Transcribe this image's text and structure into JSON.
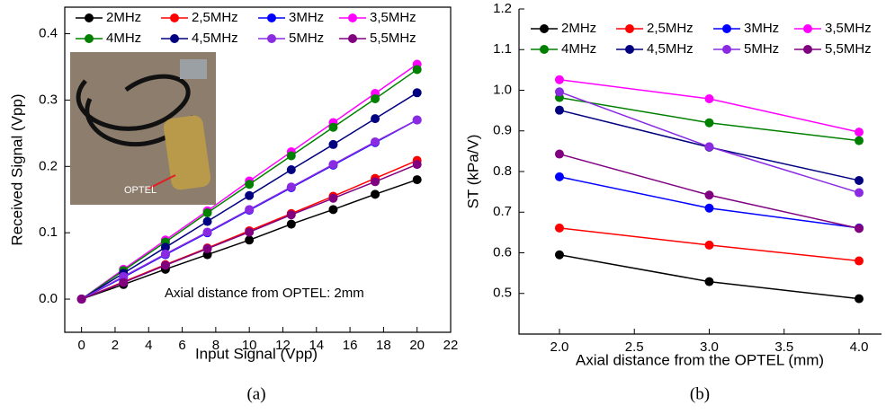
{
  "chart_data": [
    {
      "type": "line",
      "caption": "(a)",
      "xlabel": "Input Signal (Vpp)",
      "ylabel": "Received Signal (Vpp)",
      "annotation": "Axial distance from OPTEL: 2mm",
      "inset_label": "OPTEL",
      "x": [
        0,
        2.5,
        5,
        7.5,
        10,
        12.5,
        15,
        17.5,
        20
      ],
      "xlim": [
        -1,
        22
      ],
      "xticks": [
        0,
        2,
        4,
        6,
        8,
        10,
        12,
        14,
        16,
        18,
        20,
        22
      ],
      "ylim": [
        -0.05,
        0.44
      ],
      "yticks": [
        {
          "value": 0,
          "label": "0.0"
        },
        0.1,
        0.2,
        0.3,
        0.4
      ],
      "series": [
        {
          "name": "2MHz",
          "color": "#000000",
          "values": [
            0,
            0.022,
            0.045,
            0.067,
            0.089,
            0.113,
            0.135,
            0.158,
            0.18
          ]
        },
        {
          "name": "2,5MHz",
          "color": "#ff0000",
          "values": [
            0,
            0.026,
            0.052,
            0.077,
            0.103,
            0.129,
            0.155,
            0.182,
            0.209
          ]
        },
        {
          "name": "3MHz",
          "color": "#0000ff",
          "values": [
            0,
            0.033,
            0.067,
            0.1,
            0.134,
            0.168,
            0.202,
            0.236,
            0.27
          ]
        },
        {
          "name": "3,5MHz",
          "color": "#ff00ff",
          "values": [
            0,
            0.045,
            0.089,
            0.133,
            0.178,
            0.222,
            0.266,
            0.31,
            0.354
          ]
        },
        {
          "name": "4MHz",
          "color": "#008000",
          "values": [
            0,
            0.043,
            0.086,
            0.13,
            0.173,
            0.216,
            0.259,
            0.302,
            0.346
          ]
        },
        {
          "name": "4,5MHz",
          "color": "#000080",
          "values": [
            0,
            0.039,
            0.078,
            0.117,
            0.156,
            0.195,
            0.233,
            0.272,
            0.311
          ]
        },
        {
          "name": "5MHz",
          "color": "#8a2be2",
          "values": [
            0,
            0.034,
            0.068,
            0.101,
            0.135,
            0.169,
            0.203,
            0.237,
            0.27
          ]
        },
        {
          "name": "5,5MHz",
          "color": "#800080",
          "values": [
            0,
            0.025,
            0.051,
            0.076,
            0.101,
            0.127,
            0.152,
            0.177,
            0.203
          ]
        }
      ]
    },
    {
      "type": "line",
      "caption": "(b)",
      "xlabel": "Axial distance from the OPTEL (mm)",
      "ylabel": "ST (kPa/V)",
      "x": [
        2,
        3,
        4
      ],
      "xlim": [
        1.73,
        4.15
      ],
      "xticks": [
        {
          "value": 2,
          "label": "2.0"
        },
        2.5,
        {
          "value": 3,
          "label": "3.0"
        },
        3.5,
        {
          "value": 4,
          "label": "4.0"
        }
      ],
      "ylim": [
        0.4,
        1.2
      ],
      "yticks": [
        0.5,
        0.6,
        0.7,
        0.8,
        0.9,
        {
          "value": 1,
          "label": "1.0"
        },
        1.1,
        1.2
      ],
      "series": [
        {
          "name": "2MHz",
          "color": "#000000",
          "values": [
            0.595,
            0.529,
            0.487
          ]
        },
        {
          "name": "2,5MHz",
          "color": "#ff0000",
          "values": [
            0.661,
            0.619,
            0.58
          ]
        },
        {
          "name": "3MHz",
          "color": "#0000ff",
          "values": [
            0.787,
            0.71,
            0.661
          ]
        },
        {
          "name": "3,5MHz",
          "color": "#ff00ff",
          "values": [
            1.026,
            0.979,
            0.897
          ]
        },
        {
          "name": "4MHz",
          "color": "#008000",
          "values": [
            0.982,
            0.92,
            0.876
          ]
        },
        {
          "name": "4,5MHz",
          "color": "#000080",
          "values": [
            0.951,
            0.86,
            0.778
          ]
        },
        {
          "name": "5MHz",
          "color": "#8a2be2",
          "values": [
            0.996,
            0.861,
            0.748
          ]
        },
        {
          "name": "5,5MHz",
          "color": "#800080",
          "values": [
            0.843,
            0.742,
            0.66
          ]
        }
      ]
    }
  ]
}
